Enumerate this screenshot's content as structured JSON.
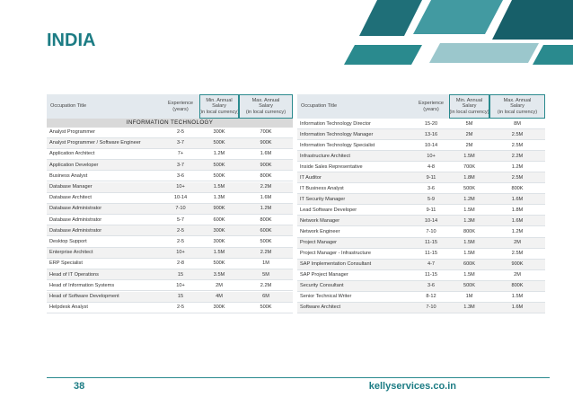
{
  "header": {
    "title": "INDIA"
  },
  "tables": [
    {
      "columns": [
        [
          "Occupation Title"
        ],
        [
          "Experience",
          "(years)"
        ],
        [
          "Min. Annual",
          "Salary",
          "(in local currency)"
        ],
        [
          "Max. Annual",
          "Salary",
          "(in local currency)"
        ]
      ],
      "section": "INFORMATION TECHNOLOGY",
      "rows": [
        [
          "Analyst Programmer",
          "2-5",
          "300K",
          "700K"
        ],
        [
          "Analyst Programmer / Software Engineer",
          "3-7",
          "500K",
          "900K"
        ],
        [
          "Application Architect",
          "7+",
          "1.2M",
          "1.6M"
        ],
        [
          "Application Developer",
          "3-7",
          "500K",
          "900K"
        ],
        [
          "Business Analyst",
          "3-6",
          "500K",
          "800K"
        ],
        [
          "Database Manager",
          "10+",
          "1.5M",
          "2.2M"
        ],
        [
          "Database Architect",
          "10-14",
          "1.3M",
          "1.6M"
        ],
        [
          "Database Administrator",
          "7-10",
          "900K",
          "1.2M"
        ],
        [
          "Database Administrator",
          "5-7",
          "600K",
          "800K"
        ],
        [
          "Database Administrator",
          "2-5",
          "300K",
          "600K"
        ],
        [
          "Desktop Support",
          "2-5",
          "300K",
          "500K"
        ],
        [
          "Enterprise Architect",
          "10+",
          "1.5M",
          "2.2M"
        ],
        [
          "ERP Specialist",
          "2-8",
          "500K",
          "1M"
        ],
        [
          "Head of IT Operations",
          "15",
          "3.5M",
          "5M"
        ],
        [
          "Head of Information Systems",
          "10+",
          "2M",
          "2.2M"
        ],
        [
          "Head of Software Development",
          "15",
          "4M",
          "6M"
        ],
        [
          "Helpdesk Analyst",
          "2-5",
          "300K",
          "500K"
        ]
      ]
    },
    {
      "columns": [
        [
          "Occupation Title"
        ],
        [
          "Experience",
          "(years)"
        ],
        [
          "Min. Annual",
          "Salary",
          "(in local currency)"
        ],
        [
          "Max. Annual",
          "Salary",
          "(in local currency)"
        ]
      ],
      "rows": [
        [
          "Information Technology Director",
          "15-20",
          "5M",
          "8M"
        ],
        [
          "Information Technology Manager",
          "13-16",
          "2M",
          "2.5M"
        ],
        [
          "Information Technology Specialist",
          "10-14",
          "2M",
          "2.5M"
        ],
        [
          "Infrastructure Architect",
          "10+",
          "1.5M",
          "2.2M"
        ],
        [
          "Inside Sales Representative",
          "4-8",
          "700K",
          "1.2M"
        ],
        [
          "IT Auditor",
          "9-11",
          "1.8M",
          "2.5M"
        ],
        [
          "IT Business Analyst",
          "3-6",
          "500K",
          "800K"
        ],
        [
          "IT Security Manager",
          "5-9",
          "1.2M",
          "1.6M"
        ],
        [
          "Lead Software Developer",
          "9-11",
          "1.5M",
          "1.8M"
        ],
        [
          "Network Manager",
          "10-14",
          "1.3M",
          "1.6M"
        ],
        [
          "Network Engineer",
          "7-10",
          "800K",
          "1.2M"
        ],
        [
          "Project Manager",
          "11-15",
          "1.5M",
          "2M"
        ],
        [
          "Project Manager - Infrastructure",
          "11-15",
          "1.5M",
          "2.5M"
        ],
        [
          "SAP Implementation Consultant",
          "4-7",
          "600K",
          "900K"
        ],
        [
          "SAP Project Manager",
          "11-15",
          "1.5M",
          "2M"
        ],
        [
          "Security Consultant",
          "3-6",
          "500K",
          "800K"
        ],
        [
          "Senior Technical Writer",
          "8-12",
          "1M",
          "1.5M"
        ],
        [
          "Software Architect",
          "7-10",
          "1.3M",
          "1.6M"
        ]
      ]
    }
  ],
  "footer": {
    "page": "38",
    "site": "kellyservices.co.in"
  }
}
